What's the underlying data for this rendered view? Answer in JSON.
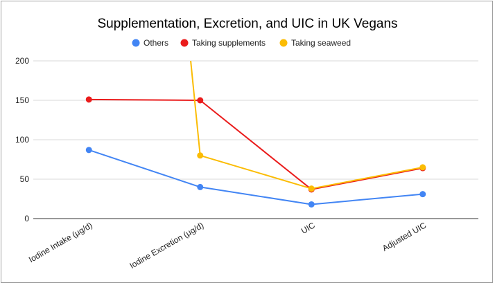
{
  "chart_data": {
    "type": "line",
    "title": "Supplementation, Excretion, and UIC in UK Vegans",
    "categories": [
      "Iodine Intake (μg/d)",
      "Iodine Excretion (μg/d)",
      "UIC",
      "Adjusted UIC"
    ],
    "ylim": [
      0,
      200
    ],
    "yticks": [
      0,
      50,
      100,
      150,
      200
    ],
    "grid": true,
    "legend_position": "top",
    "series": [
      {
        "name": "Others",
        "color": "#4285f4",
        "values": [
          87,
          40,
          18,
          31
        ]
      },
      {
        "name": "Taking supplements",
        "color": "#ea1c1c",
        "values": [
          151,
          150,
          37,
          64
        ]
      },
      {
        "name": "Taking seaweed",
        "color": "#fbbc04",
        "values": [
          null,
          80,
          38,
          65
        ],
        "offscale_start": true
      }
    ]
  }
}
